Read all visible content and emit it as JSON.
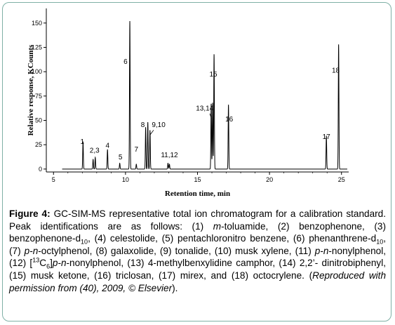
{
  "chart_data": {
    "type": "line",
    "xlabel": "Retention time, min",
    "ylabel": "Relative response, KCounts",
    "xlim": [
      4.5,
      25.5
    ],
    "ylim": [
      -3,
      165
    ],
    "x_ticks": [
      5,
      10,
      15,
      20,
      25
    ],
    "y_ticks": [
      0,
      25,
      50,
      75,
      100,
      125,
      150
    ],
    "grid": false,
    "series": [
      {
        "color": "#000000",
        "peaks": [
          {
            "id": "1",
            "x": 7.05,
            "y": 28
          },
          {
            "id": "2",
            "x": 7.75,
            "y": 10
          },
          {
            "id": "3",
            "x": 7.9,
            "y": 12
          },
          {
            "id": "4",
            "x": 8.75,
            "y": 20
          },
          {
            "id": "5",
            "x": 9.6,
            "y": 6
          },
          {
            "id": "6",
            "x": 10.3,
            "y": 152
          },
          {
            "id": "7",
            "x": 10.75,
            "y": 5
          },
          {
            "id": "8",
            "x": 11.4,
            "y": 43
          },
          {
            "id": "9",
            "x": 11.55,
            "y": 48
          },
          {
            "id": "10",
            "x": 11.7,
            "y": 40
          },
          {
            "id": "11",
            "x": 12.95,
            "y": 6
          },
          {
            "id": "12",
            "x": 13.05,
            "y": 5
          },
          {
            "id": "13",
            "x": 15.95,
            "y": 67
          },
          {
            "id": "14",
            "x": 16.05,
            "y": 68
          },
          {
            "id": "15",
            "x": 16.15,
            "y": 118
          },
          {
            "id": "16",
            "x": 17.15,
            "y": 66
          },
          {
            "id": "17",
            "x": 23.95,
            "y": 34
          },
          {
            "id": "18",
            "x": 24.8,
            "y": 128
          }
        ]
      }
    ],
    "peak_labels": [
      {
        "text": "1",
        "x": 7.0,
        "y": 26
      },
      {
        "text": "2,3",
        "x": 7.85,
        "y": 17
      },
      {
        "text": "4",
        "x": 8.75,
        "y": 22
      },
      {
        "text": "5",
        "x": 9.65,
        "y": 10
      },
      {
        "text": "6",
        "x": 10.0,
        "y": 108
      },
      {
        "text": "7",
        "x": 10.75,
        "y": 18
      },
      {
        "text": "8",
        "x": 11.2,
        "y": 43
      },
      {
        "text": "9,10",
        "x": 12.3,
        "y": 43
      },
      {
        "text": "11,12",
        "x": 13.05,
        "y": 12
      },
      {
        "text": "13,14",
        "x": 15.5,
        "y": 60
      },
      {
        "text": "15",
        "x": 16.1,
        "y": 95
      },
      {
        "text": "16",
        "x": 17.2,
        "y": 49
      },
      {
        "text": "17",
        "x": 23.95,
        "y": 31
      },
      {
        "text": "18",
        "x": 24.6,
        "y": 99
      }
    ]
  },
  "caption": {
    "figure_label": "Figure 4:",
    "segments": [
      {
        "t": " GC-SIM-MS representative total ion chromatogram for a calibration standard. Peak identifications are as follows: (1) ",
        "s": ""
      },
      {
        "t": "m",
        "s": "i"
      },
      {
        "t": "-toluamide, (2) benzophenone, (3) benzophenone-d",
        "s": ""
      },
      {
        "t": "10",
        "s": "sub"
      },
      {
        "t": ", (4) celestolide, (5) pentachloronitro benzene, (6) phenanthrene-d",
        "s": ""
      },
      {
        "t": "10",
        "s": "sub"
      },
      {
        "t": ", (7) ",
        "s": ""
      },
      {
        "t": "p-n",
        "s": "i"
      },
      {
        "t": "-octylphenol, (8) galaxolide, (9) tonalide, (10) musk xylene, (11) ",
        "s": ""
      },
      {
        "t": "p-n",
        "s": "i"
      },
      {
        "t": "-nonylphenol, (12) [",
        "s": ""
      },
      {
        "t": "13",
        "s": "sup"
      },
      {
        "t": "C",
        "s": ""
      },
      {
        "t": "6",
        "s": "sub"
      },
      {
        "t": "]",
        "s": ""
      },
      {
        "t": "p-n",
        "s": "i"
      },
      {
        "t": "-nonylphenol, (13) 4-methylbenxylidine camphor, (14) 2,2’- dinitrobiphenyl, (15) musk ketone, (16) triclosan, (17) mirex, and (18) octocrylene. (",
        "s": ""
      },
      {
        "t": "Reproduced with permission from (40), 2009, © Elsevier",
        "s": "i"
      },
      {
        "t": ").",
        "s": ""
      }
    ]
  }
}
